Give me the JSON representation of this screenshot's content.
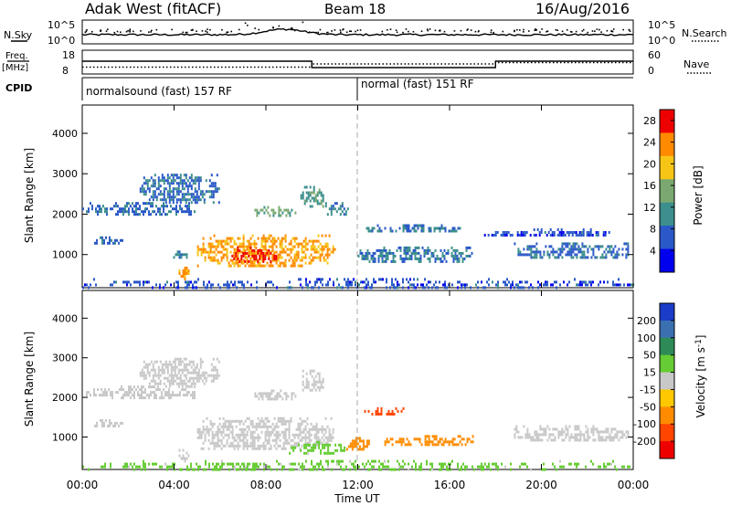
{
  "header": {
    "station": "Adak West (fitACF)",
    "beam": "Beam 18",
    "date": "16/Aug/2016"
  },
  "noise_panel": {
    "left_label": "N.Sky",
    "left_ticks": [
      "10^5",
      "10^0"
    ],
    "right_label": "N.Search",
    "right_ticks": [
      "10^5",
      "10^0"
    ]
  },
  "freq_panel": {
    "left_label_line1": "Freq.",
    "left_label_line2": "[MHz]",
    "left_ticks": [
      "18",
      "8"
    ],
    "right_label": "Nave",
    "right_ticks": [
      "60",
      "0"
    ],
    "change_hour": 10.0,
    "change_back_hour": 18.0
  },
  "cpid_panel": {
    "label": "CPID",
    "programs": [
      {
        "name": "normalsound (fast) 157 RF",
        "start_hour": 0
      },
      {
        "name": "normal (fast) 151 RF",
        "start_hour": 12
      }
    ]
  },
  "chart_data": [
    {
      "type": "heatmap",
      "name": "power",
      "ylabel": "Slant Range [km]",
      "xlabel": "Time UT",
      "x_ticks": [
        "00:00",
        "04:00",
        "08:00",
        "12:00",
        "16:00",
        "20:00",
        "00:00"
      ],
      "xlim_hours": [
        0,
        24
      ],
      "y_ticks": [
        1000,
        2000,
        3000,
        4000
      ],
      "ylim": [
        180,
        4700
      ],
      "colorbar": {
        "label": "Power [dB]",
        "ticks": [
          4,
          8,
          12,
          16,
          20,
          24,
          28
        ],
        "range": [
          0,
          30
        ],
        "colors": [
          "#0000ee",
          "#2a58c8",
          "#3c8f8c",
          "#7aa870",
          "#f7c516",
          "#ff8a00",
          "#ee0000"
        ]
      },
      "echo_regions": [
        {
          "t0": 0.2,
          "t1": 1.8,
          "r0": 1250,
          "r1": 1450,
          "level": 8
        },
        {
          "t0": 2.5,
          "t1": 6.0,
          "r0": 2300,
          "r1": 3000,
          "level": 8
        },
        {
          "t0": 0.0,
          "t1": 5.0,
          "r0": 2000,
          "r1": 2300,
          "level": 8
        },
        {
          "t0": 3.8,
          "t1": 4.6,
          "r0": 900,
          "r1": 1100,
          "level": 10
        },
        {
          "t0": 4.2,
          "t1": 4.6,
          "r0": 400,
          "r1": 700,
          "level": 22
        },
        {
          "t0": 5.0,
          "t1": 11.0,
          "r0": 700,
          "r1": 1500,
          "level": 22
        },
        {
          "t0": 6.5,
          "t1": 8.5,
          "r0": 800,
          "r1": 1200,
          "level": 27
        },
        {
          "t0": 7.5,
          "t1": 9.3,
          "r0": 1950,
          "r1": 2200,
          "level": 14
        },
        {
          "t0": 9.5,
          "t1": 10.5,
          "r0": 2200,
          "r1": 2700,
          "level": 12
        },
        {
          "t0": 10.5,
          "t1": 11.6,
          "r0": 2000,
          "r1": 2300,
          "level": 10
        },
        {
          "t0": 12.2,
          "t1": 16.5,
          "r0": 1550,
          "r1": 1750,
          "level": 8
        },
        {
          "t0": 12.0,
          "t1": 17.0,
          "r0": 800,
          "r1": 1200,
          "level": 9
        },
        {
          "t0": 18.8,
          "t1": 23.8,
          "r0": 900,
          "r1": 1300,
          "level": 8
        },
        {
          "t0": 17.5,
          "t1": 23.0,
          "r0": 1450,
          "r1": 1650,
          "level": 6
        },
        {
          "t0": 0.0,
          "t1": 24.0,
          "r0": 180,
          "r1": 420,
          "level": 6
        }
      ]
    },
    {
      "type": "heatmap",
      "name": "velocity",
      "ylabel": "Slant Range [km]",
      "xlabel": "Time UT",
      "x_ticks": [
        "00:00",
        "04:00",
        "08:00",
        "12:00",
        "16:00",
        "20:00",
        "00:00"
      ],
      "xlim_hours": [
        0,
        24
      ],
      "y_ticks": [
        1000,
        2000,
        3000,
        4000
      ],
      "ylim": [
        180,
        4700
      ],
      "colorbar": {
        "label": "Velocity [m s^-1]",
        "ticks": [
          200,
          100,
          50,
          15,
          -15,
          -50,
          -100,
          -200
        ],
        "colors": [
          "#1a3cc8",
          "#3a70b0",
          "#2e8b57",
          "#66cc33",
          "#c8c8c8",
          "#ffc800",
          "#ff8c00",
          "#ff4500",
          "#ee0000"
        ]
      },
      "echo_regions": [
        {
          "t0": 0.2,
          "t1": 1.8,
          "r0": 1250,
          "r1": 1450,
          "v": 0
        },
        {
          "t0": 2.5,
          "t1": 6.0,
          "r0": 2300,
          "r1": 3000,
          "v": 0
        },
        {
          "t0": 0.0,
          "t1": 5.0,
          "r0": 2000,
          "r1": 2300,
          "v": 0
        },
        {
          "t0": 4.2,
          "t1": 4.6,
          "r0": 400,
          "r1": 700,
          "v": 0
        },
        {
          "t0": 5.0,
          "t1": 11.0,
          "r0": 700,
          "r1": 1500,
          "v": 0
        },
        {
          "t0": 9.0,
          "t1": 11.5,
          "r0": 600,
          "r1": 900,
          "v": 20
        },
        {
          "t0": 7.5,
          "t1": 9.3,
          "r0": 1950,
          "r1": 2200,
          "v": 0
        },
        {
          "t0": 9.5,
          "t1": 10.5,
          "r0": 2200,
          "r1": 2700,
          "v": 0
        },
        {
          "t0": 12.2,
          "t1": 14.0,
          "r0": 1600,
          "r1": 1750,
          "v": -120
        },
        {
          "t0": 13.0,
          "t1": 17.0,
          "r0": 800,
          "r1": 1050,
          "v": -60
        },
        {
          "t0": 11.5,
          "t1": 12.5,
          "r0": 700,
          "r1": 1000,
          "v": -40
        },
        {
          "t0": 18.8,
          "t1": 23.8,
          "r0": 900,
          "r1": 1300,
          "v": 0
        },
        {
          "t0": 0.0,
          "t1": 24.0,
          "r0": 180,
          "r1": 420,
          "v": 20
        }
      ]
    }
  ]
}
